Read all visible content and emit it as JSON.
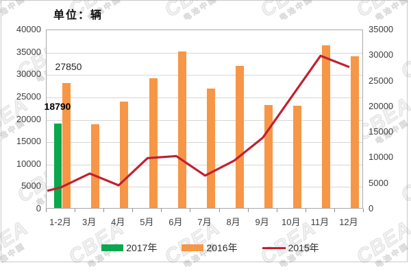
{
  "title": "单位：辆",
  "watermark": {
    "brand": "CBEA",
    "sub": "电池中国"
  },
  "chart_data": {
    "type": "bar",
    "subtype": "grouped bars with secondary-axis line",
    "categories": [
      "1-2月",
      "3月",
      "4月",
      "5月",
      "6月",
      "7月",
      "8月",
      "9月",
      "10月",
      "11月",
      "12月"
    ],
    "series": [
      {
        "name": "2017年",
        "type": "bar",
        "axis": "left",
        "color": "#0aa84e",
        "values": [
          18790,
          null,
          null,
          null,
          null,
          null,
          null,
          null,
          null,
          null,
          null
        ]
      },
      {
        "name": "2016年",
        "type": "bar",
        "axis": "left",
        "color": "#f79646",
        "values": [
          27850,
          18700,
          23700,
          29000,
          35000,
          26700,
          31800,
          23000,
          22900,
          36400,
          33800
        ]
      },
      {
        "name": "2015年",
        "type": "line",
        "axis": "right",
        "color": "#c02030",
        "values": [
          4300,
          7000,
          4700,
          10000,
          10400,
          6600,
          9500,
          14000,
          22000,
          30000,
          27800
        ]
      }
    ],
    "left_axis": {
      "min": 0,
      "max": 40000,
      "step": 5000,
      "ticks": [
        "40000",
        "35000",
        "30000",
        "25000",
        "20000",
        "15000",
        "10000",
        "5000",
        "0"
      ]
    },
    "right_axis": {
      "min": 0,
      "max": 35000,
      "step": 5000,
      "ticks": [
        "35000",
        "30000",
        "25000",
        "20000",
        "15000",
        "10000",
        "5000",
        "0"
      ]
    },
    "annotations": [
      {
        "text": "27850",
        "series": "2016年",
        "category": "1-2月"
      },
      {
        "text": "18790",
        "series": "2017年",
        "category": "1-2月"
      }
    ],
    "grid": true,
    "legend_position": "bottom"
  }
}
